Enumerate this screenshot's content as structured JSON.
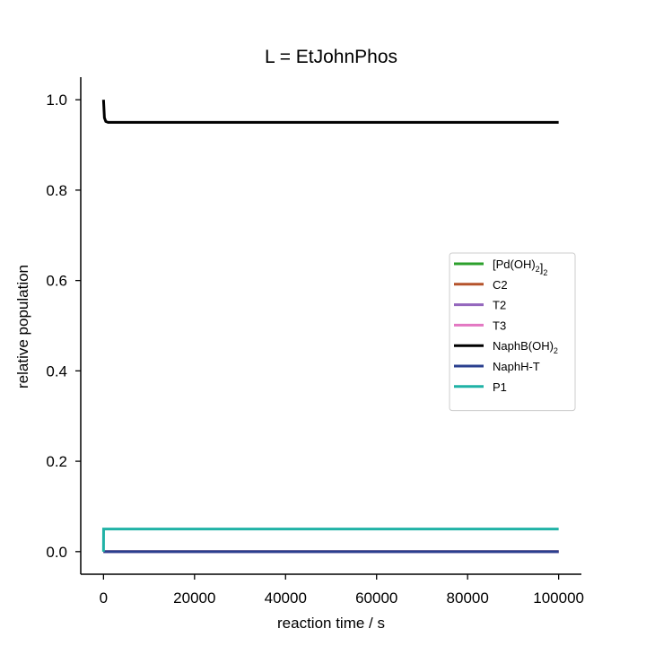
{
  "chart_data": {
    "type": "line",
    "title": "L = EtJohnPhos",
    "xlabel": "reaction time / s",
    "ylabel": "relative population",
    "xlim": [
      -5000,
      105000
    ],
    "ylim": [
      -0.05,
      1.05
    ],
    "x_ticks": [
      0,
      20000,
      40000,
      60000,
      80000,
      100000
    ],
    "x_tick_labels": [
      "0",
      "20000",
      "40000",
      "60000",
      "80000",
      "100000"
    ],
    "y_ticks": [
      0.0,
      0.2,
      0.4,
      0.6,
      0.8,
      1.0
    ],
    "y_tick_labels": [
      "0.0",
      "0.2",
      "0.4",
      "0.6",
      "0.8",
      "1.0"
    ],
    "grid": false,
    "legend_position": "center-right",
    "series": [
      {
        "name": "[Pd(OH)2]2",
        "legend": {
          "main": "[Pd(OH)",
          "sub1": "2",
          "mid": "]",
          "sub2": "2",
          "tail": ""
        },
        "color": "#2ca02c",
        "x": [
          0,
          100000
        ],
        "y": [
          0.0,
          0.0
        ]
      },
      {
        "name": "C2",
        "legend": {
          "main": "C2",
          "sub1": "",
          "mid": "",
          "sub2": "",
          "tail": ""
        },
        "color": "#b5532b",
        "x": [
          0,
          100000
        ],
        "y": [
          0.0,
          0.0
        ]
      },
      {
        "name": "T2",
        "legend": {
          "main": "T2",
          "sub1": "",
          "mid": "",
          "sub2": "",
          "tail": ""
        },
        "color": "#9467bd",
        "x": [
          0,
          100000
        ],
        "y": [
          0.0,
          0.0
        ]
      },
      {
        "name": "T3",
        "legend": {
          "main": "T3",
          "sub1": "",
          "mid": "",
          "sub2": "",
          "tail": ""
        },
        "color": "#e377c2",
        "x": [
          0,
          100000
        ],
        "y": [
          0.0,
          0.0
        ]
      },
      {
        "name": "NaphB(OH)2",
        "legend": {
          "main": "NaphB(OH)",
          "sub1": "2",
          "mid": "",
          "sub2": "",
          "tail": ""
        },
        "color": "#000000",
        "x": [
          0,
          200,
          500,
          1000,
          100000
        ],
        "y": [
          1.0,
          0.96,
          0.952,
          0.95,
          0.95
        ]
      },
      {
        "name": "NaphH-T",
        "legend": {
          "main": "NaphH-T",
          "sub1": "",
          "mid": "",
          "sub2": "",
          "tail": ""
        },
        "color": "#2a3f8f",
        "x": [
          0,
          100000
        ],
        "y": [
          0.0,
          0.0
        ]
      },
      {
        "name": "P1",
        "legend": {
          "main": "P1",
          "sub1": "",
          "mid": "",
          "sub2": "",
          "tail": ""
        },
        "color": "#20b2a6",
        "x": [
          0,
          20,
          100,
          100000
        ],
        "y": [
          0.0,
          0.05,
          0.05,
          0.05
        ]
      }
    ]
  }
}
